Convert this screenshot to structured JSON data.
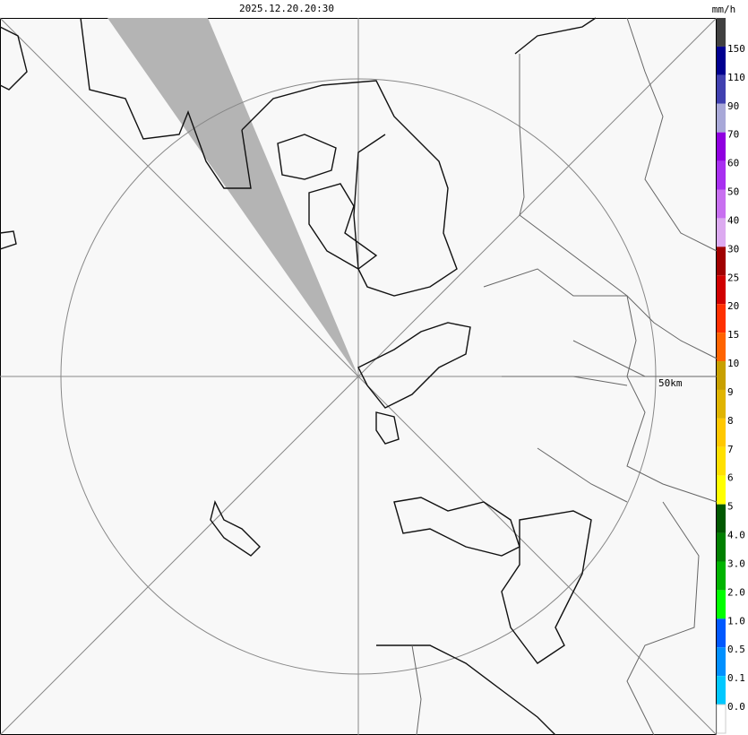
{
  "header": {
    "timestamp": "2025.12.20.20:30",
    "unit": "mm/h"
  },
  "map": {
    "range_label": "50km"
  },
  "legend": {
    "colors": [
      "#404040",
      "#000090",
      "#4040b0",
      "#a8a8d8",
      "#9000e0",
      "#a830f0",
      "#c870f0",
      "#dcaaf0",
      "#a00000",
      "#d00000",
      "#ff3000",
      "#ff6400",
      "#c8a000",
      "#e0b400",
      "#ffc800",
      "#ffe000",
      "#ffff00",
      "#005800",
      "#008000",
      "#00b400",
      "#00ff00",
      "#0058ff",
      "#0090ff",
      "#00c8ff",
      "#ffffff"
    ],
    "labels": [
      "150",
      "110",
      "90",
      "70",
      "60",
      "50",
      "40",
      "30",
      "25",
      "20",
      "15",
      "10",
      "9",
      "8",
      "7",
      "6",
      "5",
      "4.0",
      "3.0",
      "2.0",
      "1.0",
      "0.5",
      "0.1",
      "0.0"
    ]
  }
}
